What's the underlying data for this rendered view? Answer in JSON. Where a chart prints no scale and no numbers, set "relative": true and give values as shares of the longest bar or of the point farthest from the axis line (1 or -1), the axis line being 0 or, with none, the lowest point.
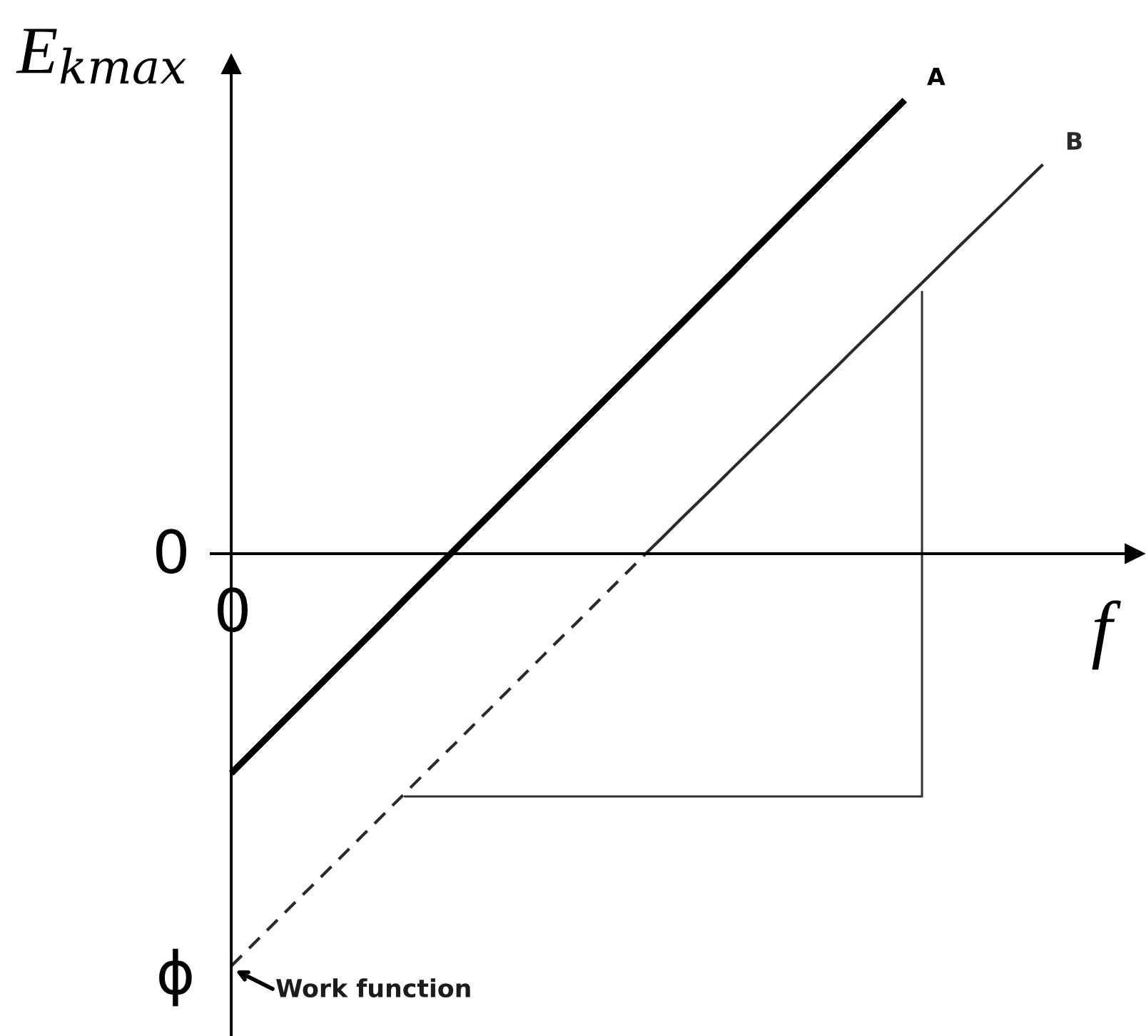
{
  "chart_data": {
    "type": "line",
    "relative": true,
    "ylabel": "E$_{kmax}$",
    "xlabel": "f",
    "marker": "none",
    "line_style": "solid",
    "categories": [
      null,
      null,
      null,
      null,
      null,
      null,
      null,
      null,
      null,
      null,
      null,
      null,
      null,
      null,
      null,
      null,
      null,
      null,
      null,
      null,
      null,
      null,
      null,
      null,
      null,
      null,
      null,
      null,
      null,
      null,
      null,
      null,
      null,
      null,
      null,
      null,
      null,
      null,
      null,
      null,
      null,
      null,
      null,
      null,
      null,
      null,
      null,
      null,
      null,
      null,
      null,
      null,
      null
    ],
    "series": [
      {
        "name": "A",
        "color": "#000000",
        "values": [
          -0.484,
          -0.446,
          -0.408,
          -0.37,
          -0.332,
          -0.294,
          -0.256,
          -0.218,
          -0.18,
          -0.142,
          -0.103,
          -0.065,
          -0.027,
          0.011,
          0.049,
          0.087,
          0.125,
          0.163,
          0.201,
          0.239,
          0.277,
          0.315,
          0.353,
          0.391,
          0.429,
          0.467,
          0.505,
          0.543,
          0.581,
          0.619,
          0.658,
          0.696,
          0.734,
          0.772,
          0.81,
          0.848,
          0.886,
          0.924,
          0.962,
          1.0,
          null,
          null,
          null,
          null,
          null,
          null,
          null,
          null,
          null,
          null,
          null,
          null,
          null
        ]
      },
      {
        "color": "#2a2a2a",
        "line_style": "dashed",
        "values": [
          -0.909,
          -0.871,
          -0.833,
          -0.795,
          -0.757,
          -0.72,
          -0.682,
          -0.644,
          -0.606,
          -0.568,
          -0.53,
          -0.492,
          -0.454,
          -0.417,
          -0.379,
          -0.341,
          -0.303,
          -0.265,
          -0.227,
          -0.189,
          -0.152,
          -0.114,
          -0.076,
          -0.038,
          0,
          null,
          null,
          null,
          null,
          null,
          null,
          null,
          null,
          null,
          null,
          null,
          null,
          null,
          null,
          null,
          null,
          null,
          null,
          null,
          null,
          null,
          null,
          null,
          null,
          null,
          null,
          null,
          null
        ]
      },
      {
        "name": "B",
        "color": "#2a2a2a",
        "values": [
          null,
          null,
          null,
          null,
          null,
          null,
          null,
          null,
          null,
          null,
          null,
          null,
          null,
          null,
          null,
          null,
          null,
          null,
          null,
          null,
          null,
          null,
          null,
          null,
          0,
          0.037,
          0.075,
          0.112,
          0.149,
          0.187,
          0.224,
          0.261,
          0.298,
          0.336,
          0.373,
          0.41,
          0.448,
          0.485,
          0.522,
          0.56,
          0.597,
          0.634,
          0.672,
          0.709,
          0.746,
          0.783,
          0.821,
          0.858,
          null,
          null,
          null,
          null,
          null
        ]
      },
      {
        "type": "step",
        "color": "#333333",
        "values": [
          null,
          null,
          null,
          null,
          null,
          null,
          null,
          null,
          null,
          null,
          -0.535,
          -0.535,
          -0.535,
          -0.535,
          -0.535,
          -0.535,
          -0.535,
          -0.535,
          -0.535,
          -0.535,
          -0.535,
          -0.535,
          -0.535,
          -0.535,
          -0.535,
          -0.535,
          -0.535,
          -0.535,
          -0.535,
          -0.535,
          -0.535,
          -0.535,
          -0.535,
          -0.535,
          -0.535,
          -0.535,
          -0.535,
          -0.535,
          -0.535,
          -0.535,
          0.579,
          null,
          null,
          null,
          null,
          null,
          null,
          null,
          null,
          null,
          null,
          null,
          null
        ]
      }
    ],
    "annotations": [
      "0",
      "0",
      "ϕ",
      "Work function"
    ]
  }
}
